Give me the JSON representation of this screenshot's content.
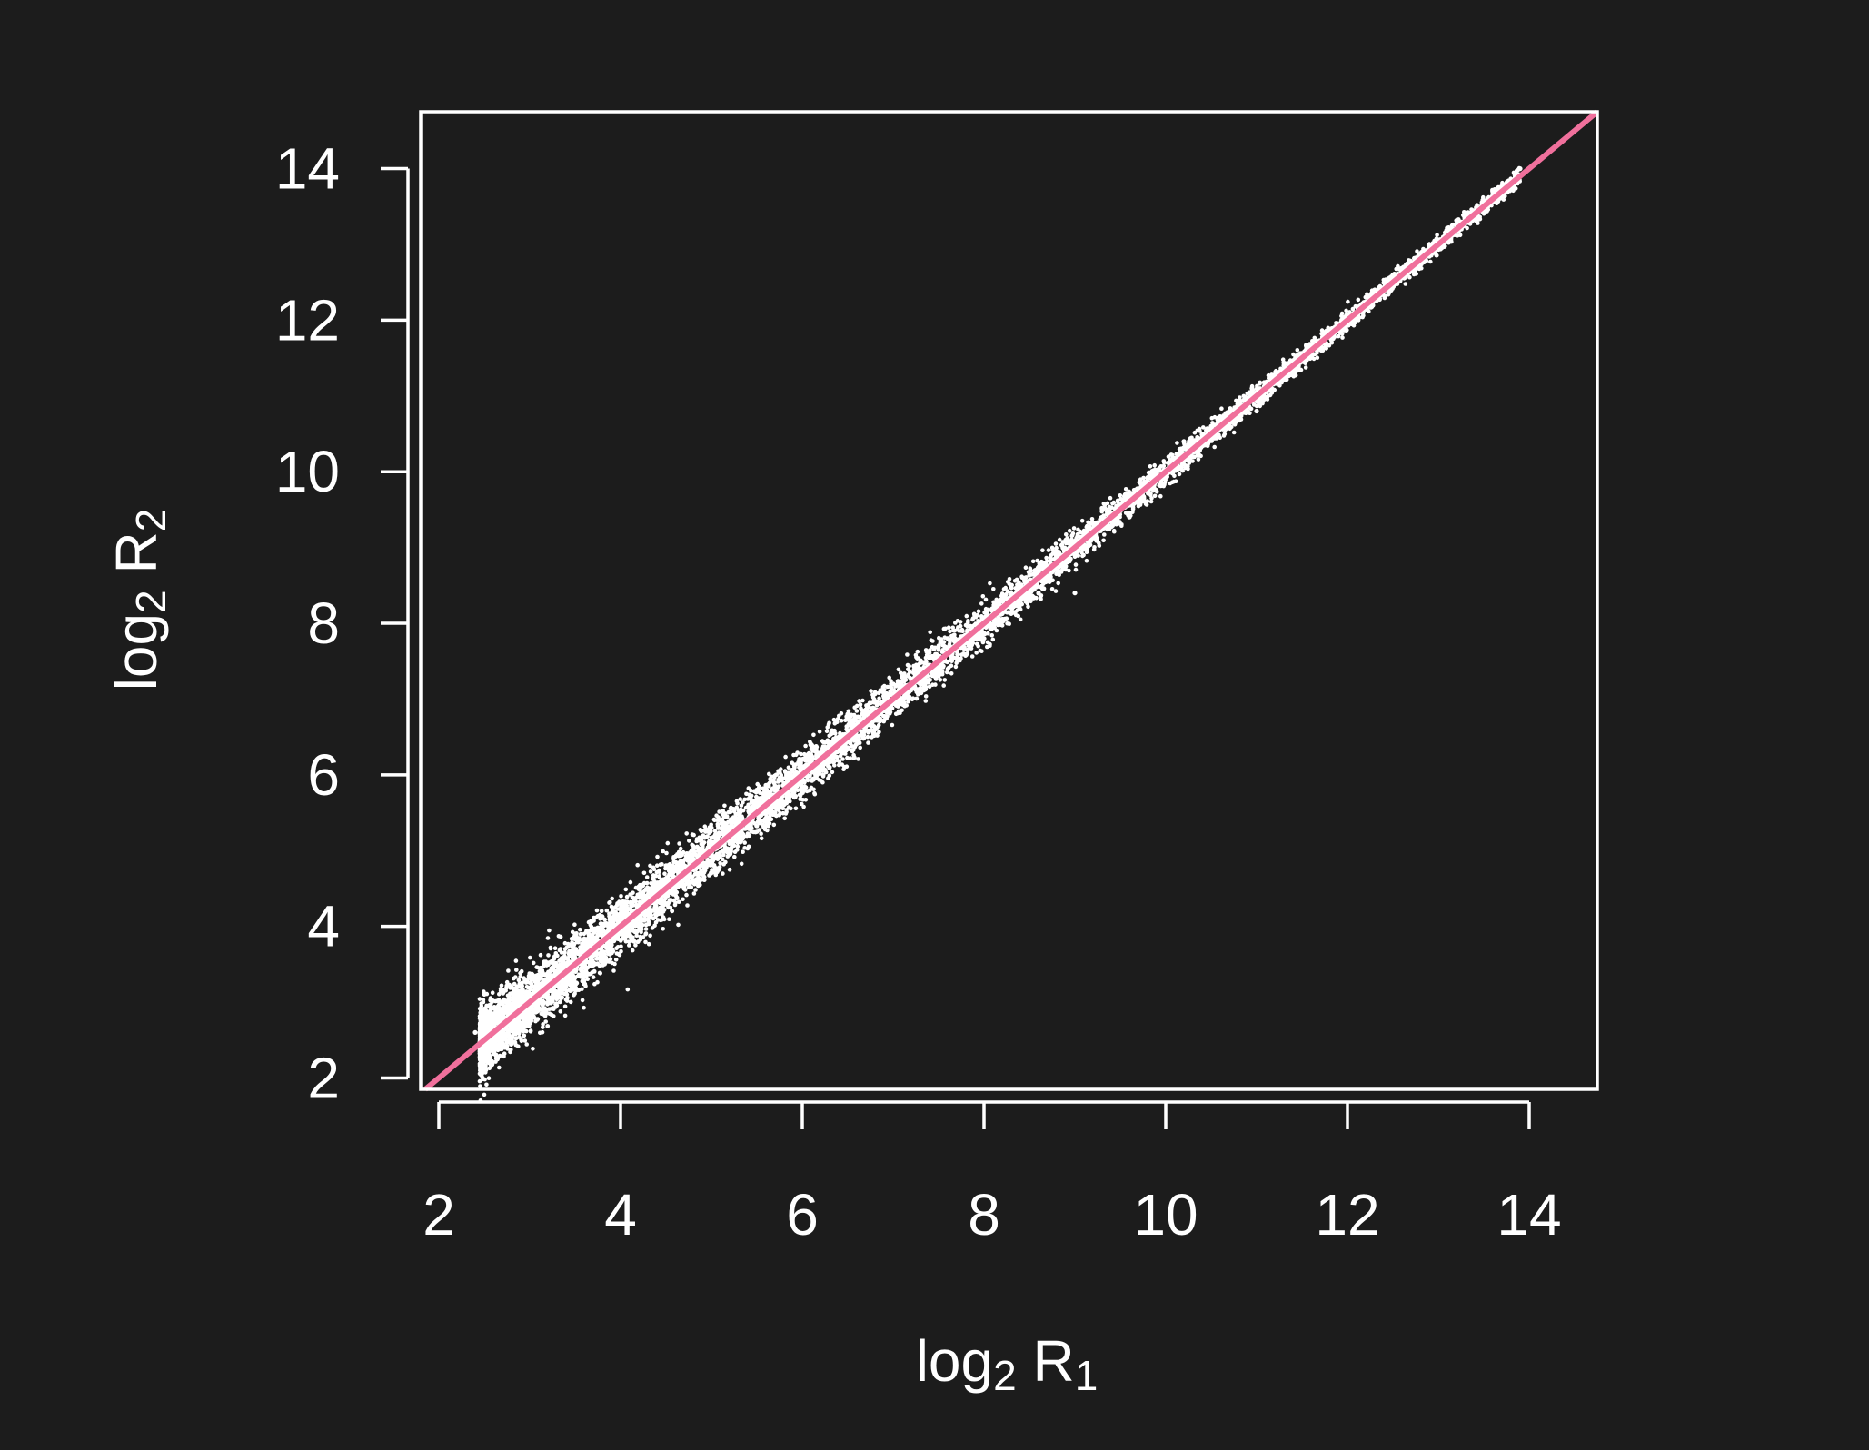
{
  "colors": {
    "background": "#1c1c1c",
    "foreground": "#ffffff",
    "points": "#ffffff",
    "identity_line": "#f0709c"
  },
  "chart_data": {
    "type": "scatter",
    "title": "",
    "xlabel": {
      "prefix": "log",
      "prefix_sub": "2",
      "main": " R",
      "main_sub": "1"
    },
    "ylabel": {
      "prefix": "log",
      "prefix_sub": "2",
      "main": " R",
      "main_sub": "2"
    },
    "xlim": [
      1.8,
      14.75
    ],
    "ylim": [
      1.85,
      14.75
    ],
    "xticks": [
      2,
      4,
      6,
      8,
      10,
      12,
      14
    ],
    "yticks": [
      2,
      4,
      6,
      8,
      10,
      12,
      14
    ],
    "grid": false,
    "legend": "none",
    "reference_line": {
      "type": "identity",
      "slope": 1,
      "intercept": 0
    },
    "series": [
      {
        "points_description_values": "dense cloud of points tightly around y = x",
        "x_range": [
          2.3,
          13.9
        ],
        "y_range": [
          2.4,
          14.0
        ],
        "sample_points": [
          [
            2.4,
            2.6
          ],
          [
            2.5,
            2.9
          ],
          [
            2.7,
            2.6
          ],
          [
            2.8,
            3.2
          ],
          [
            3.0,
            2.8
          ],
          [
            3.2,
            3.5
          ],
          [
            3.4,
            3.2
          ],
          [
            3.5,
            3.9
          ],
          [
            3.7,
            3.5
          ],
          [
            4.0,
            4.3
          ],
          [
            4.2,
            4.0
          ],
          [
            4.5,
            4.8
          ],
          [
            4.7,
            4.5
          ],
          [
            5.0,
            5.3
          ],
          [
            5.2,
            5.0
          ],
          [
            5.5,
            5.8
          ],
          [
            5.7,
            5.5
          ],
          [
            6.0,
            6.2
          ],
          [
            6.3,
            6.1
          ],
          [
            6.5,
            6.8
          ],
          [
            6.8,
            6.6
          ],
          [
            7.0,
            7.2
          ],
          [
            7.3,
            7.1
          ],
          [
            7.6,
            7.8
          ],
          [
            8.0,
            7.8
          ],
          [
            8.3,
            8.5
          ],
          [
            8.6,
            8.4
          ],
          [
            8.9,
            9.1
          ],
          [
            9.0,
            8.4
          ],
          [
            9.3,
            9.5
          ],
          [
            9.6,
            9.4
          ],
          [
            9.9,
            10.0
          ],
          [
            10.2,
            10.4
          ],
          [
            10.5,
            10.6
          ],
          [
            10.8,
            10.9
          ],
          [
            11.0,
            10.8
          ],
          [
            11.3,
            11.4
          ],
          [
            11.6,
            11.6
          ],
          [
            12.0,
            12.0
          ],
          [
            12.3,
            12.4
          ],
          [
            12.6,
            12.6
          ],
          [
            13.0,
            13.0
          ],
          [
            13.4,
            13.4
          ],
          [
            13.9,
            14.0
          ]
        ]
      }
    ]
  }
}
